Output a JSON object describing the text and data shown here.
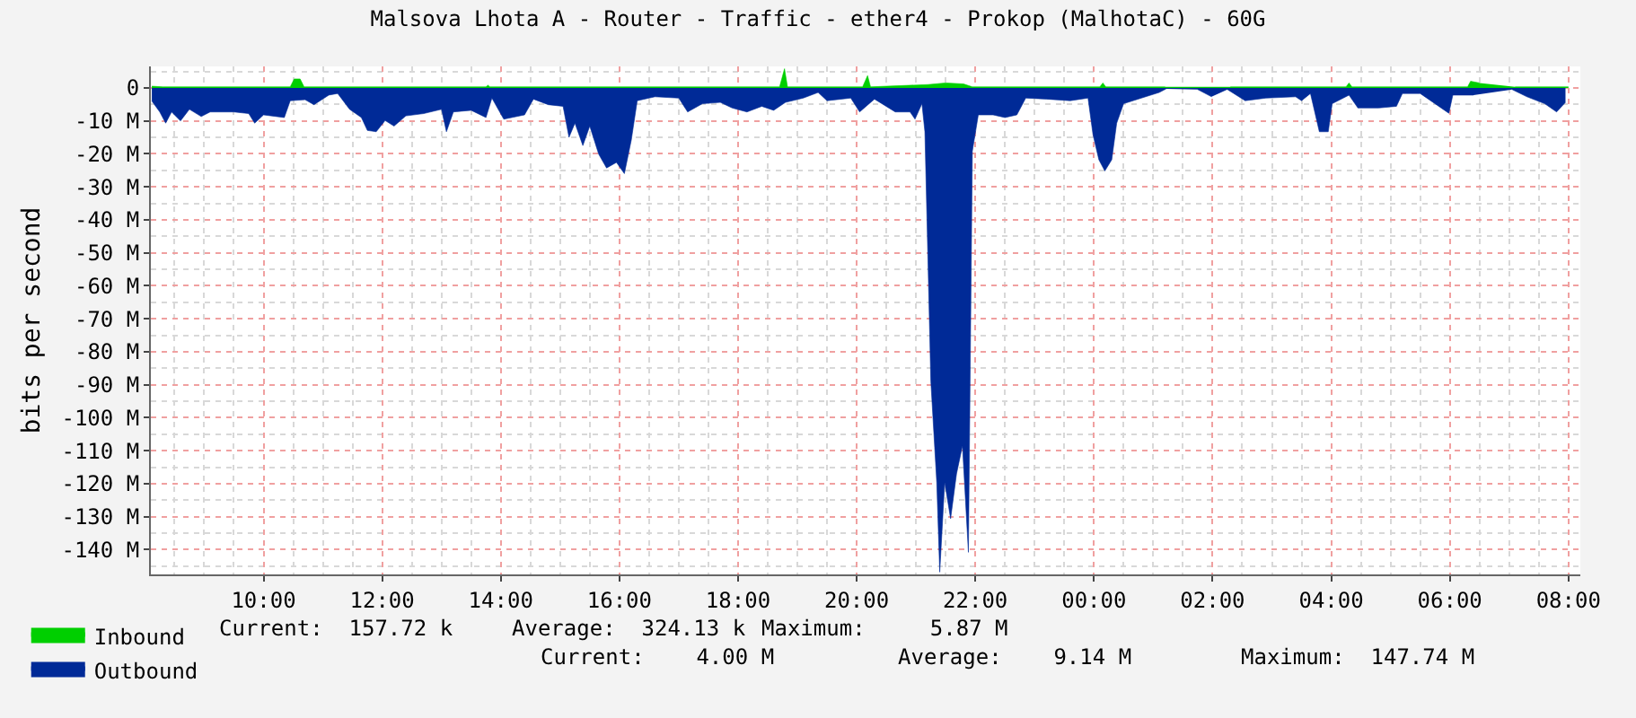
{
  "chart_data": {
    "type": "area",
    "title": "Malsova Lhota A - Router - Traffic - ether4 - Prokop (MalhotaC) - 60G",
    "ylabel": "bits per second",
    "xlim": [
      "--01-01T08:06",
      "--01-02T08:12"
    ],
    "ylim": [
      -147.5,
      6.5
    ],
    "xticks": [
      {
        "value": "--01-01T10:00",
        "label": "10:00"
      },
      {
        "value": "--01-01T12:00",
        "label": "12:00"
      },
      {
        "value": "--01-01T14:00",
        "label": "14:00"
      },
      {
        "value": "--01-01T16:00",
        "label": "16:00"
      },
      {
        "value": "--01-01T18:00",
        "label": "18:00"
      },
      {
        "value": "--01-01T20:00",
        "label": "20:00"
      },
      {
        "value": "--01-01T22:00",
        "label": "22:00"
      },
      {
        "value": "--01-02T00:00",
        "label": "00:00"
      },
      {
        "value": "--01-02T02:00",
        "label": "02:00"
      },
      {
        "value": "--01-02T04:00",
        "label": "04:00"
      },
      {
        "value": "--01-02T06:00",
        "label": "06:00"
      },
      {
        "value": "--01-02T08:00",
        "label": "08:00"
      }
    ],
    "yticks": [
      0,
      {
        "value": -10,
        "label": "-10 M"
      },
      {
        "value": -20,
        "label": "-20 M"
      },
      {
        "value": -30,
        "label": "-30 M"
      },
      {
        "value": -40,
        "label": "-40 M"
      },
      {
        "value": -50,
        "label": "-50 M"
      },
      {
        "value": -60,
        "label": "-60 M"
      },
      {
        "value": -70,
        "label": "-70 M"
      },
      {
        "value": -80,
        "label": "-80 M"
      },
      {
        "value": -90,
        "label": "-90 M"
      },
      {
        "value": -100,
        "label": "-100 M"
      },
      {
        "value": -110,
        "label": "-110 M"
      },
      {
        "value": -120,
        "label": "-120 M"
      },
      {
        "value": -130,
        "label": "-130 M"
      },
      {
        "value": -140,
        "label": "-140 M"
      }
    ],
    "grid": true,
    "legend": "bottom left",
    "series": [
      {
        "name": "Inbound",
        "color": "#00cf00",
        "x": [
          "--01-01T08:07",
          "--01-01T08:18",
          "--01-01T10:27",
          "--01-01T10:31",
          "--01-01T10:37",
          "--01-01T10:41",
          "--01-01T13:45",
          "--01-01T13:47",
          "--01-01T13:49",
          "--01-01T18:42",
          "--01-01T18:47",
          "--01-01T18:50",
          "--01-01T20:06",
          "--01-01T20:11",
          "--01-01T20:14",
          "--01-01T21:12",
          "--01-01T21:30",
          "--01-01T21:48",
          "--01-01T21:57",
          "--01-02T00:06",
          "--01-02T00:09",
          "--01-02T00:12",
          "--01-02T01:12",
          "--01-02T01:15",
          "--01-02T02:18",
          "--01-02T04:15",
          "--01-02T04:18",
          "--01-02T04:21",
          "--01-02T06:18",
          "--01-02T06:21",
          "--01-02T06:30",
          "--01-02T06:33",
          "--01-02T07:06",
          "--01-02T08:00"
        ],
        "values": [
          0.5,
          0.3,
          0.3,
          2.7,
          2.7,
          0.3,
          0.3,
          0.8,
          0.3,
          0.3,
          5.8,
          0.3,
          0.3,
          3.7,
          0.3,
          1.0,
          1.5,
          1.2,
          0.3,
          0.3,
          1.5,
          0.3,
          0.3,
          null,
          0.3,
          0.3,
          1.5,
          0.3,
          0.3,
          2.0,
          1.5,
          null,
          0.3,
          0.3
        ]
      },
      {
        "name": "Outbound",
        "color": "#002a97",
        "x": [
          "--01-01T08:07",
          "--01-01T08:15",
          "--01-01T08:21",
          "--01-01T08:27",
          "--01-01T08:36",
          "--01-01T08:45",
          "--01-01T08:57",
          "--01-01T09:06",
          "--01-01T09:18",
          "--01-01T09:30",
          "--01-01T09:45",
          "--01-01T09:51",
          "--01-01T10:00",
          "--01-01T10:21",
          "--01-01T10:27",
          "--01-01T10:42",
          "--01-01T10:51",
          "--01-01T11:06",
          "--01-01T11:15",
          "--01-01T11:27",
          "--01-01T11:39",
          "--01-01T11:45",
          "--01-01T11:54",
          "--01-01T12:03",
          "--01-01T12:12",
          "--01-01T12:24",
          "--01-01T12:42",
          "--01-01T13:00",
          "--01-01T13:05",
          "--01-01T13:12",
          "--01-01T13:30",
          "--01-01T13:45",
          "--01-01T13:51",
          "--01-01T14:03",
          "--01-01T14:24",
          "--01-01T14:33",
          "--01-01T14:48",
          "--01-01T15:03",
          "--01-01T15:09",
          "--01-01T15:15",
          "--01-01T15:23",
          "--01-01T15:30",
          "--01-01T15:39",
          "--01-01T15:47",
          "--01-01T15:57",
          "--01-01T16:05",
          "--01-01T16:12",
          "--01-01T16:18",
          "--01-01T16:36",
          "--01-01T17:00",
          "--01-01T17:09",
          "--01-01T17:24",
          "--01-01T17:42",
          "--01-01T17:54",
          "--01-01T18:09",
          "--01-01T18:24",
          "--01-01T18:36",
          "--01-01T18:48",
          "--01-01T19:06",
          "--01-01T19:21",
          "--01-01T19:30",
          "--01-01T19:54",
          "--01-01T20:03",
          "--01-01T20:18",
          "--01-01T20:39",
          "--01-01T20:54",
          "--01-01T20:59",
          "--01-01T21:06",
          "--01-01T21:09",
          "--01-01T21:15",
          "--01-01T21:21",
          "--01-01T21:24",
          "--01-01T21:29",
          "--01-01T21:35",
          "--01-01T21:41",
          "--01-01T21:47",
          "--01-01T21:53",
          "--01-01T21:57",
          "--01-01T22:03",
          "--01-01T22:18",
          "--01-01T22:30",
          "--01-01T22:42",
          "--01-01T22:51",
          "--01-01T23:12",
          "--01-01T23:36",
          "--01-01T23:54",
          "--01-01T23:59",
          "--01-02T00:05",
          "--01-02T00:11",
          "--01-02T00:18",
          "--01-02T00:23",
          "--01-02T00:30",
          "--01-02T00:48",
          "--01-02T01:06",
          "--01-02T01:13",
          "--01-02T01:18",
          "--01-02T01:45",
          "--01-02T01:52",
          "--01-02T01:59",
          "--01-02T02:03",
          "--01-02T02:15",
          "--01-02T02:33",
          "--01-02T02:54",
          "--01-02T03:24",
          "--01-02T03:30",
          "--01-02T03:39",
          "--01-02T03:48",
          "--01-02T03:57",
          "--01-02T04:01",
          "--01-02T04:18",
          "--01-02T04:27",
          "--01-02T04:48",
          "--01-02T05:06",
          "--01-02T05:12",
          "--01-02T05:30",
          "--01-02T05:59",
          "--01-02T06:03",
          "--01-02T06:24",
          "--01-02T06:30",
          "--01-02T07:03",
          "--01-02T07:18",
          "--01-02T07:36",
          "--01-02T07:48",
          "--01-02T07:57"
        ],
        "values": [
          -4,
          -7.3,
          -10.7,
          -7.3,
          -10,
          -6.5,
          -8.7,
          -7.3,
          -7.3,
          -7.3,
          -7.8,
          -10.7,
          -8.2,
          -9,
          -3.9,
          -3.6,
          -5.1,
          -2.2,
          -1.7,
          -6.5,
          -9,
          -12.9,
          -13.3,
          -9.9,
          -11.6,
          -8.5,
          -7.8,
          -6.5,
          -13.3,
          -7.3,
          -6.8,
          -9,
          -3.1,
          -9.5,
          -8.2,
          -3.4,
          -5.1,
          -5.6,
          -15,
          -10.7,
          -17.5,
          -11.6,
          -20.1,
          -24.3,
          -22.6,
          -26,
          -15.8,
          -3.9,
          -2.7,
          -3.1,
          -7.3,
          -4.8,
          -4.4,
          -6.1,
          -7.3,
          -5.6,
          -6.8,
          -4.4,
          -3.1,
          -1.4,
          -3.9,
          -3.1,
          -7.3,
          -3.4,
          -7.3,
          -7.3,
          -9.5,
          -4.8,
          -13.3,
          -88.9,
          -119.6,
          -146.8,
          -119.6,
          -130.6,
          -117,
          -108.5,
          -140.8,
          -19.2,
          -8.2,
          -8.2,
          -9,
          -8.2,
          -3.1,
          -3.4,
          -3.9,
          -3.1,
          -14.1,
          -21.8,
          -25.2,
          -21.8,
          -10.7,
          -4.8,
          -3.1,
          -1.4,
          -0.3,
          null,
          -0.5,
          -1.6,
          -2.7,
          null,
          -0.5,
          -3.9,
          -3.1,
          -2.7,
          -3.9,
          -1.7,
          -13.3,
          -13.3,
          -4.8,
          -2.2,
          -6.1,
          -6.1,
          -5.6,
          -1.7,
          -1.7,
          -7.7,
          -2.2,
          -2.2,
          null,
          -0.5,
          -2.7,
          -4.8,
          -7.3,
          -4.4
        ]
      }
    ],
    "annotations": [
      "Current:  157.72 k",
      "Average:  324.13 k",
      "Maximum:     5.87 M",
      "Current:    4.00 M",
      "Average:    9.14 M",
      "Maximum:  147.74 M"
    ]
  }
}
